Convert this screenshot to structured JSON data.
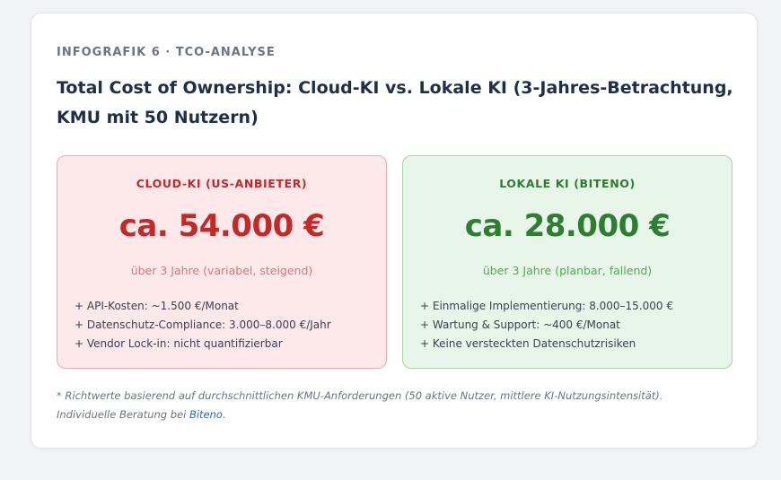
{
  "header": {
    "eyebrow": "INFOGRAFIK 6 · TCO-ANALYSE",
    "title": "Total Cost of Ownership: Cloud-KI vs. Lokale KI (3-Jahres-Betrachtung, KMU mit 50 Nutzern)"
  },
  "cloud": {
    "label": "CLOUD-KI (US-ANBIETER)",
    "amount": "ca. 54.000 €",
    "period": "über 3 Jahre (variabel, steigend)",
    "items": [
      "+ API-Kosten: ~1.500 €/Monat",
      "+ Datenschutz-Compliance: 3.000–8.000 €/Jahr",
      "+ Vendor Lock-in: nicht quantifizierbar"
    ]
  },
  "local": {
    "label": "LOKALE KI (BITENO)",
    "amount": "ca. 28.000 €",
    "period": "über 3 Jahre (planbar, fallend)",
    "items": [
      "+ Einmalige Implementierung: 8.000–15.000 €",
      "+ Wartung & Support: ~400 €/Monat",
      "+ Keine versteckten Datenschutzrisiken"
    ]
  },
  "footnote": {
    "line1": "* Richtwerte basierend auf durchschnittlichen KMU-Anforderungen (50 aktive Nutzer, mittlere KI-Nutzungsintensität).",
    "line2_prefix": "Individuelle Beratung bei ",
    "link_label": "Biteno",
    "line2_suffix": "."
  },
  "colors": {
    "cloud_accent": "#c62828",
    "local_accent": "#2e7d32",
    "link": "#1f6fb2"
  }
}
